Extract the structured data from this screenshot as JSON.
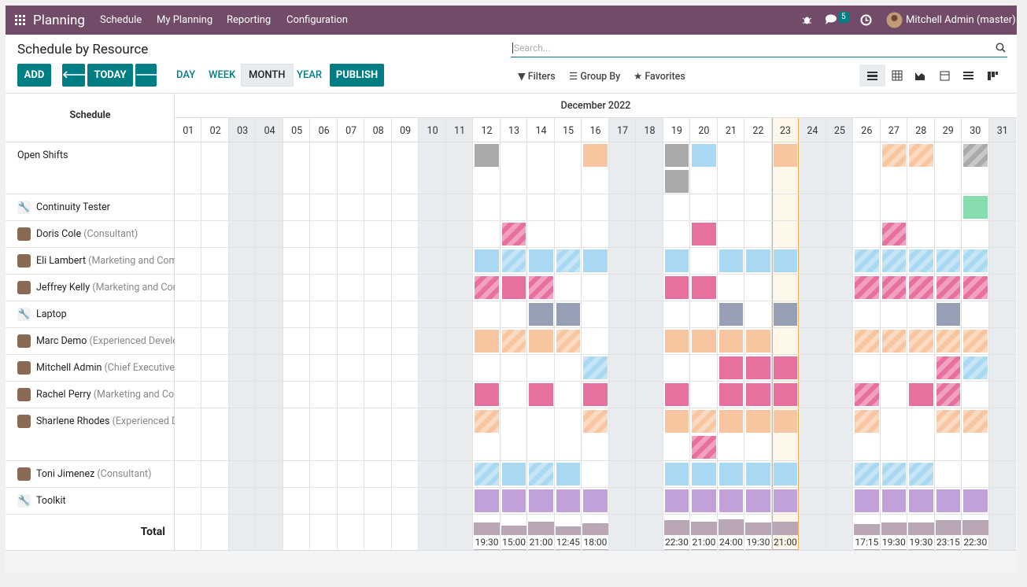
{
  "navbar": {
    "app": "Planning",
    "menu": [
      "Schedule",
      "My Planning",
      "Reporting",
      "Configuration"
    ],
    "messages": "5",
    "user": "Mitchell Admin (master)"
  },
  "control_panel": {
    "title": "Schedule by Resource",
    "search_placeholder": "Search...",
    "add": "ADD",
    "today": "TODAY",
    "scales": [
      "DAY",
      "WEEK",
      "MONTH",
      "YEAR"
    ],
    "active_scale": "MONTH",
    "publish": "PUBLISH",
    "filters": "Filters",
    "group_by": "Group By",
    "favorites": "Favorites"
  },
  "schedule": {
    "header": "Schedule",
    "month": "December 2022",
    "days": [
      "01",
      "02",
      "03",
      "04",
      "05",
      "06",
      "07",
      "08",
      "09",
      "10",
      "11",
      "12",
      "13",
      "14",
      "15",
      "16",
      "17",
      "18",
      "19",
      "20",
      "21",
      "22",
      "23",
      "24",
      "25",
      "26",
      "27",
      "28",
      "29",
      "30",
      "31"
    ],
    "weekends": [
      3,
      4,
      10,
      11,
      17,
      18,
      24,
      25,
      31
    ],
    "today": 23,
    "palette": {
      "G": "#aaaaaa",
      "P": "#f7c6a0",
      "B": "#a8d8f2",
      "K": "#e8709f",
      "N": "#86dcac",
      "S": "#969fb3",
      "V": "#c0a1d9"
    },
    "open_shifts": {
      "name": "Open Shifts",
      "shifts": [
        [
          12,
          "G",
          false
        ],
        [
          16,
          "P",
          false
        ],
        [
          19,
          "G",
          false
        ],
        [
          19,
          "G",
          false
        ],
        [
          20,
          "B",
          false
        ],
        [
          23,
          "P",
          false
        ],
        [
          27,
          "P",
          true
        ],
        [
          28,
          "P",
          true
        ],
        [
          30,
          "G",
          true
        ]
      ]
    },
    "rows": [
      {
        "name": "Continuity Tester",
        "shifts": [
          [
            30,
            "N",
            false
          ]
        ]
      },
      {
        "name": "Doris Cole",
        "role": "(Consultant)",
        "shifts": [
          [
            13,
            "K",
            true
          ],
          [
            20,
            "K",
            false
          ],
          [
            27,
            "K",
            true
          ]
        ]
      },
      {
        "name": "Eli Lambert",
        "role": "(Marketing and Communications)",
        "shifts": [
          [
            12,
            "B",
            false
          ],
          [
            13,
            "B",
            true
          ],
          [
            14,
            "B",
            false
          ],
          [
            15,
            "B",
            true
          ],
          [
            16,
            "B",
            false
          ],
          [
            19,
            "B",
            false
          ],
          [
            21,
            "B",
            false
          ],
          [
            22,
            "B",
            false
          ],
          [
            23,
            "B",
            false
          ],
          [
            26,
            "B",
            true
          ],
          [
            27,
            "B",
            true
          ],
          [
            28,
            "B",
            true
          ],
          [
            29,
            "B",
            true
          ],
          [
            30,
            "B",
            true
          ]
        ]
      },
      {
        "name": "Jeffrey Kelly",
        "role": "(Marketing and Communications)",
        "shifts": [
          [
            12,
            "K",
            true
          ],
          [
            13,
            "K",
            false
          ],
          [
            14,
            "K",
            true
          ],
          [
            19,
            "K",
            false
          ],
          [
            20,
            "K",
            false
          ],
          [
            26,
            "K",
            true
          ],
          [
            27,
            "K",
            true
          ],
          [
            28,
            "K",
            true
          ],
          [
            29,
            "K",
            true
          ],
          [
            30,
            "K",
            true
          ]
        ]
      },
      {
        "name": "Laptop",
        "shifts": [
          [
            14,
            "S",
            false
          ],
          [
            15,
            "S",
            false
          ],
          [
            21,
            "S",
            false
          ],
          [
            23,
            "S",
            false
          ],
          [
            29,
            "S",
            false
          ]
        ]
      },
      {
        "name": "Marc Demo",
        "role": "(Experienced Developer)",
        "shifts": [
          [
            12,
            "P",
            false
          ],
          [
            13,
            "P",
            true
          ],
          [
            14,
            "P",
            false
          ],
          [
            15,
            "P",
            true
          ],
          [
            19,
            "P",
            false
          ],
          [
            20,
            "P",
            false
          ],
          [
            21,
            "P",
            false
          ],
          [
            22,
            "P",
            false
          ],
          [
            26,
            "P",
            true
          ],
          [
            27,
            "P",
            true
          ],
          [
            28,
            "P",
            true
          ],
          [
            29,
            "P",
            true
          ],
          [
            30,
            "P",
            true
          ]
        ]
      },
      {
        "name": "Mitchell Admin",
        "role": "(Chief Executive Officer)",
        "shifts": [
          [
            16,
            "B",
            true
          ],
          [
            21,
            "K",
            false
          ],
          [
            22,
            "K",
            false
          ],
          [
            23,
            "K",
            false
          ],
          [
            29,
            "K",
            true
          ],
          [
            30,
            "B",
            true
          ]
        ]
      },
      {
        "name": "Rachel Perry",
        "role": "(Marketing and Communications)",
        "shifts": [
          [
            12,
            "K",
            false
          ],
          [
            14,
            "K",
            false
          ],
          [
            16,
            "K",
            false
          ],
          [
            19,
            "K",
            false
          ],
          [
            21,
            "K",
            false
          ],
          [
            22,
            "K",
            false
          ],
          [
            23,
            "K",
            false
          ],
          [
            26,
            "K",
            true
          ],
          [
            28,
            "K",
            false
          ],
          [
            29,
            "K",
            true
          ]
        ]
      },
      {
        "name": "Sharlene Rhodes",
        "role": "(Experienced Developer)",
        "shifts": [
          [
            12,
            "P",
            true
          ],
          [
            16,
            "P",
            true
          ],
          [
            19,
            "P",
            false
          ],
          [
            20,
            "P",
            true
          ],
          [
            20,
            "K",
            true
          ],
          [
            21,
            "P",
            false
          ],
          [
            22,
            "P",
            false
          ],
          [
            23,
            "P",
            false
          ],
          [
            26,
            "P",
            true
          ],
          [
            29,
            "P",
            true
          ],
          [
            30,
            "P",
            true
          ]
        ]
      },
      {
        "name": "Toni Jimenez",
        "role": "(Consultant)",
        "shifts": [
          [
            12,
            "B",
            true
          ],
          [
            13,
            "B",
            false
          ],
          [
            14,
            "B",
            true
          ],
          [
            15,
            "B",
            false
          ],
          [
            19,
            "B",
            false
          ],
          [
            20,
            "B",
            false
          ],
          [
            21,
            "B",
            false
          ],
          [
            22,
            "B",
            false
          ],
          [
            23,
            "B",
            false
          ],
          [
            26,
            "B",
            true
          ],
          [
            27,
            "B",
            true
          ],
          [
            28,
            "B",
            true
          ]
        ]
      },
      {
        "name": "Toolkit",
        "shifts": [
          [
            12,
            "V",
            false
          ],
          [
            13,
            "V",
            false
          ],
          [
            14,
            "V",
            false
          ],
          [
            15,
            "V",
            false
          ],
          [
            16,
            "V",
            false
          ],
          [
            19,
            "V",
            false
          ],
          [
            20,
            "V",
            false
          ],
          [
            21,
            "V",
            false
          ],
          [
            22,
            "V",
            false
          ],
          [
            23,
            "V",
            false
          ],
          [
            26,
            "V",
            false
          ],
          [
            27,
            "V",
            false
          ],
          [
            28,
            "V",
            false
          ],
          [
            29,
            "V",
            false
          ],
          [
            30,
            "V",
            false
          ]
        ]
      }
    ],
    "total": {
      "label": "Total",
      "values": [
        {
          "day": 12,
          "hours": 19.5,
          "label": "19:30"
        },
        {
          "day": 13,
          "hours": 15,
          "label": "15:00"
        },
        {
          "day": 14,
          "hours": 21,
          "label": "21:00"
        },
        {
          "day": 15,
          "hours": 12.75,
          "label": "12:45"
        },
        {
          "day": 16,
          "hours": 18,
          "label": "18:00"
        },
        {
          "day": 19,
          "hours": 22.5,
          "label": "22:30"
        },
        {
          "day": 20,
          "hours": 21,
          "label": "21:00"
        },
        {
          "day": 21,
          "hours": 24,
          "label": "24:00"
        },
        {
          "day": 22,
          "hours": 19.5,
          "label": "19:30"
        },
        {
          "day": 23,
          "hours": 21,
          "label": "21:00"
        },
        {
          "day": 26,
          "hours": 17.25,
          "label": "17:15"
        },
        {
          "day": 27,
          "hours": 19.5,
          "label": "19:30"
        },
        {
          "day": 28,
          "hours": 19.5,
          "label": "19:30"
        },
        {
          "day": 29,
          "hours": 23.25,
          "label": "23:15"
        },
        {
          "day": 30,
          "hours": 22.5,
          "label": "22:30"
        }
      ]
    }
  }
}
